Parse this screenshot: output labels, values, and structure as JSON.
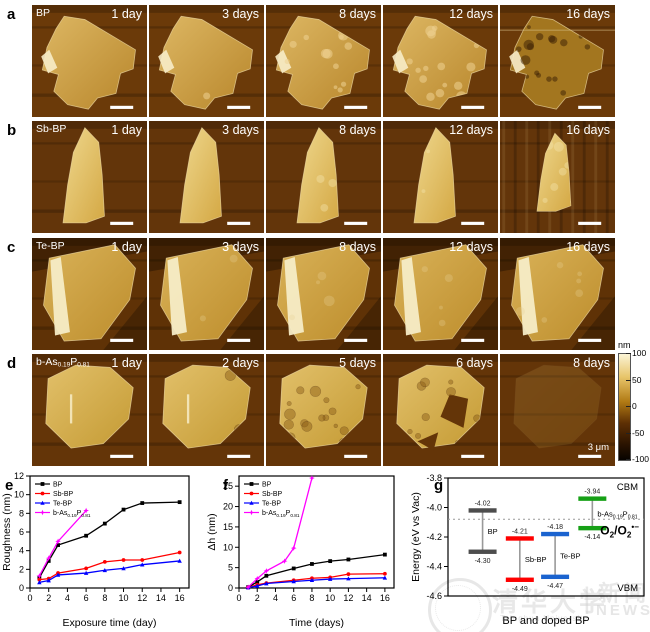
{
  "afm": {
    "rows": [
      {
        "letter": "a",
        "material_parts": [
          [
            "BP",
            0
          ]
        ],
        "days": [
          "1 day",
          "3 days",
          "8 days",
          "12 days",
          "16 days"
        ],
        "shape": "bp",
        "degradation": [
          0,
          2,
          14,
          16,
          20
        ]
      },
      {
        "letter": "b",
        "material_parts": [
          [
            "Sb-BP",
            0
          ]
        ],
        "days": [
          "1 day",
          "3 days",
          "8 days",
          "12 days",
          "16 days"
        ],
        "shape": "sb",
        "degradation": [
          0,
          4,
          10,
          8,
          12
        ]
      },
      {
        "letter": "c",
        "material_parts": [
          [
            "Te-BP",
            0
          ]
        ],
        "days": [
          "1 day",
          "3 days",
          "8 days",
          "12 days",
          "16 days"
        ],
        "shape": "te",
        "degradation": [
          0,
          2,
          4,
          5,
          8
        ]
      },
      {
        "letter": "d",
        "material_parts": [
          [
            "b-As",
            0
          ],
          [
            "0.19",
            1
          ],
          [
            "P",
            0
          ],
          [
            "0.81",
            1
          ]
        ],
        "days": [
          "1 day",
          "2 days",
          "5 days",
          "6 days",
          "8 days"
        ],
        "shape": "bap",
        "degradation": [
          0,
          2,
          16,
          10,
          0
        ],
        "scale_label": "3 μm"
      }
    ]
  },
  "colorbar": {
    "unit": "nm",
    "ticks": [
      "100",
      "50",
      "0",
      "-50",
      "-100"
    ]
  },
  "watermark": {
    "seal_chars": "清华大学",
    "caption": "Tsinghua University",
    "divider": "|",
    "news_cn": "新闻",
    "news_en": "NEWS"
  },
  "chart_data": [
    {
      "letter": "e",
      "type": "line",
      "xlabel": "Exposure time (day)",
      "ylabel": "Roughness (nm)",
      "xlim": [
        0,
        17
      ],
      "ylim": [
        0,
        12
      ],
      "xticks": [
        0,
        2,
        4,
        6,
        8,
        10,
        12,
        14,
        16
      ],
      "yticks": [
        0,
        2,
        4,
        6,
        8,
        10,
        12
      ],
      "grid": false,
      "legend_position": "top-left",
      "series": [
        {
          "name": "BP",
          "parts": [
            [
              "BP",
              0
            ]
          ],
          "color": "#000000",
          "marker": "square",
          "x": [
            1,
            2,
            3,
            6,
            8,
            10,
            12,
            16
          ],
          "y": [
            1.1,
            2.9,
            4.6,
            5.6,
            6.9,
            8.4,
            9.1,
            9.2
          ]
        },
        {
          "name": "Sb-BP",
          "parts": [
            [
              "Sb-BP",
              0
            ]
          ],
          "color": "#ff0000",
          "marker": "circle",
          "x": [
            1,
            2,
            3,
            6,
            8,
            10,
            12,
            16
          ],
          "y": [
            0.9,
            1.0,
            1.6,
            2.1,
            2.8,
            3.0,
            3.0,
            3.8
          ]
        },
        {
          "name": "Te-BP",
          "parts": [
            [
              "Te-BP",
              0
            ]
          ],
          "color": "#0000ff",
          "marker": "triangle",
          "x": [
            1,
            2,
            3,
            6,
            8,
            10,
            12,
            16
          ],
          "y": [
            0.6,
            0.8,
            1.4,
            1.6,
            1.9,
            2.1,
            2.5,
            2.9
          ]
        },
        {
          "name": "b-As0.19P0.81",
          "parts": [
            [
              "b-As",
              0
            ],
            [
              "0.19",
              1
            ],
            [
              "P",
              0
            ],
            [
              "0.81",
              1
            ]
          ],
          "color": "#ff00ff",
          "marker": "star",
          "x": [
            1,
            2,
            3,
            6
          ],
          "y": [
            1.3,
            3.2,
            5.0,
            8.3
          ]
        }
      ]
    },
    {
      "letter": "f",
      "type": "line",
      "xlabel": "Time (days)",
      "ylabel": "Δh (nm)",
      "xlim": [
        0,
        17
      ],
      "ylim": [
        0,
        27.5
      ],
      "xticks": [
        0,
        2,
        4,
        6,
        8,
        10,
        12,
        14,
        16
      ],
      "yticks": [
        0,
        5,
        10,
        15,
        20,
        25
      ],
      "grid": false,
      "legend_position": "top-left",
      "series": [
        {
          "name": "BP",
          "parts": [
            [
              "BP",
              0
            ]
          ],
          "color": "#000000",
          "marker": "square",
          "x": [
            1,
            2,
            3,
            6,
            8,
            10,
            12,
            16
          ],
          "y": [
            0.2,
            1.5,
            3.0,
            4.8,
            5.9,
            6.6,
            7.0,
            8.2
          ]
        },
        {
          "name": "Sb-BP",
          "parts": [
            [
              "Sb-BP",
              0
            ]
          ],
          "color": "#ff0000",
          "marker": "circle",
          "x": [
            1,
            2,
            3,
            6,
            8,
            10,
            12,
            16
          ],
          "y": [
            0.1,
            0.8,
            1.2,
            1.9,
            2.4,
            2.6,
            3.4,
            3.5
          ]
        },
        {
          "name": "Te-BP",
          "parts": [
            [
              "Te-BP",
              0
            ]
          ],
          "color": "#0000ff",
          "marker": "triangle",
          "x": [
            1,
            2,
            3,
            6,
            8,
            10,
            12,
            16
          ],
          "y": [
            0.1,
            0.5,
            1.1,
            1.6,
            1.9,
            2.2,
            2.3,
            2.5
          ]
        },
        {
          "name": "b-As0.19P0.81",
          "parts": [
            [
              "b-As",
              0
            ],
            [
              "0.19",
              1
            ],
            [
              "P",
              0
            ],
            [
              "0.81",
              1
            ]
          ],
          "color": "#ff00ff",
          "marker": "star",
          "x": [
            1,
            2,
            3,
            5,
            6,
            8
          ],
          "y": [
            0.2,
            2.3,
            4.2,
            6.6,
            9.8,
            27.0
          ]
        }
      ]
    },
    {
      "letter": "g",
      "type": "band",
      "xlabel": "BP and doped BP",
      "ylabel": "Energy (eV vs Vac)",
      "ylim": [
        -4.6,
        -3.8
      ],
      "ytick_vals": [
        -3.8,
        -4.0,
        -4.2,
        -4.4,
        -4.6
      ],
      "ytick_labels": [
        "-3.8",
        "-4.0",
        "-4.2",
        "-4.4",
        "-4.6"
      ],
      "redox_level": -4.08,
      "labels": {
        "cbm": "CBM",
        "vbm": "VBM",
        "redox_parts": [
          [
            "O",
            0
          ],
          [
            "2",
            1
          ],
          [
            "/O",
            0
          ],
          [
            "2",
            1
          ],
          [
            "•−",
            2
          ]
        ]
      },
      "bands": [
        {
          "parts": [
            [
              "BP",
              0
            ]
          ],
          "name": "BP",
          "color": "#4d4d4d",
          "cbm": -4.02,
          "vbm": -4.3,
          "cbm_label": "-4.02",
          "vbm_label": "-4.30"
        },
        {
          "parts": [
            [
              "Sb-BP",
              0
            ]
          ],
          "name": "Sb-BP",
          "color": "#ff0000",
          "cbm": -4.21,
          "vbm": -4.49,
          "cbm_label": "-4.21",
          "vbm_label": "-4.49"
        },
        {
          "parts": [
            [
              "Te-BP",
              0
            ]
          ],
          "name": "Te-BP",
          "color": "#1a63cf",
          "cbm": -4.18,
          "vbm": -4.47,
          "cbm_label": "-4.18",
          "vbm_label": "-4.47"
        },
        {
          "parts": [
            [
              "b-As",
              0
            ],
            [
              "0.19",
              1
            ],
            [
              "P",
              0
            ],
            [
              "0.81",
              1
            ]
          ],
          "name": "b-As0.19P0.81",
          "color": "#16a016",
          "cbm": -3.94,
          "vbm": -4.14,
          "cbm_label": "-3.94",
          "vbm_label": "-4.14"
        }
      ]
    }
  ]
}
